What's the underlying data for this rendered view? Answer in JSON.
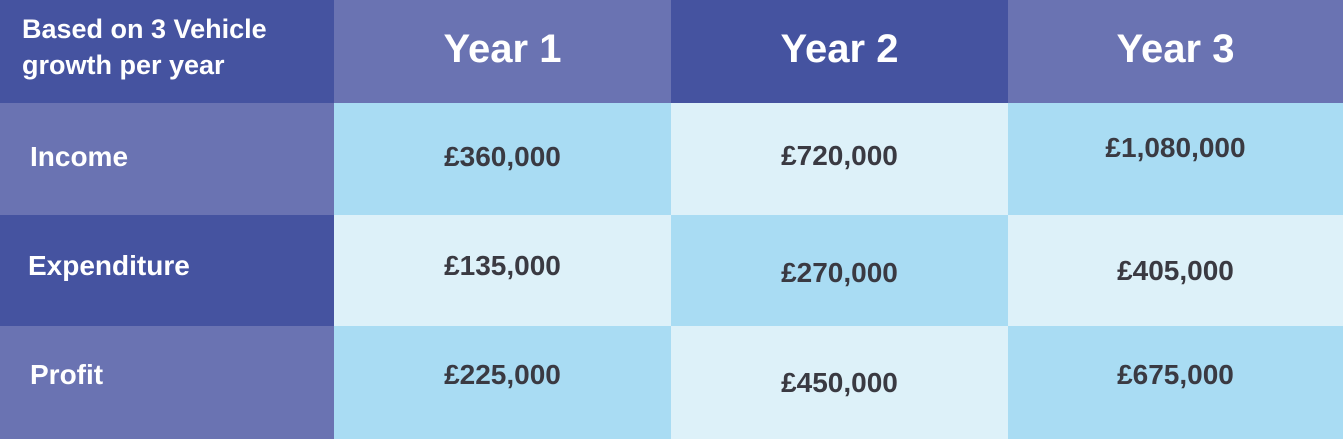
{
  "chart_data": {
    "type": "table",
    "corner_label": "Based on 3 Vehicle growth per year",
    "columns": [
      "Year 1",
      "Year 2",
      "Year 3"
    ],
    "rows": [
      {
        "label": "Income",
        "values": [
          "£360,000",
          "£720,000",
          "£1,080,000"
        ]
      },
      {
        "label": "Expenditure",
        "values": [
          "£135,000",
          "£270,000",
          "£405,000"
        ]
      },
      {
        "label": "Profit",
        "values": [
          "£225,000",
          "£450,000",
          "£675,000"
        ]
      }
    ]
  },
  "colors": {
    "header_dark": "#4553a0",
    "header_light": "#6a73b2",
    "cell_blue": "#a9dcf3",
    "cell_pale": "#ddf1f9",
    "value_text": "#3a3a42"
  }
}
